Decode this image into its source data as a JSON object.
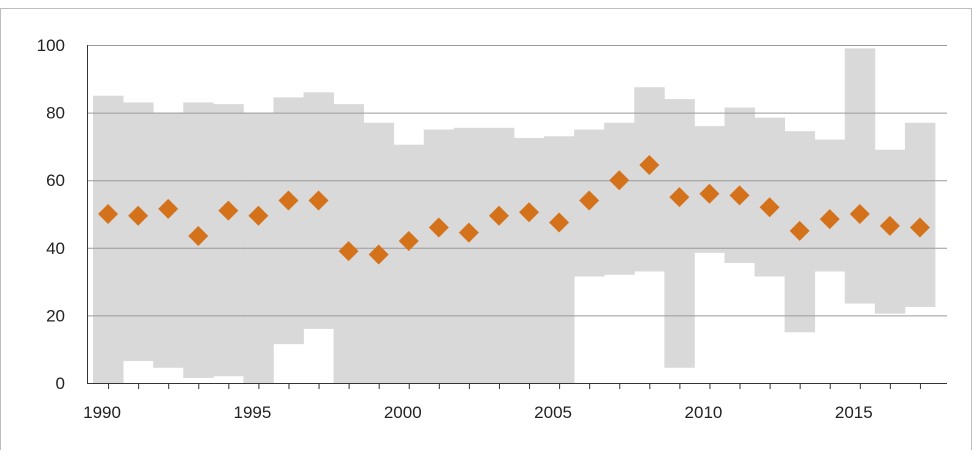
{
  "chart_data": {
    "type": "scatter",
    "title": "",
    "xlabel": "",
    "ylabel": "",
    "xlim": [
      1989.3,
      2017.9
    ],
    "ylim": [
      0,
      100
    ],
    "x_ticks": [
      "1990",
      "1995",
      "2000",
      "2005",
      "2010",
      "2015"
    ],
    "y_ticks": [
      "0",
      "20",
      "40",
      "60",
      "80",
      "100"
    ],
    "grid": true,
    "legend": "none",
    "colors": {
      "band": "#d9d9d9",
      "marker": "#d4721c",
      "grid": "#9a9a9a",
      "axis": "#333333"
    },
    "x": [
      1990,
      1991,
      1992,
      1993,
      1994,
      1995,
      1996,
      1997,
      1998,
      1999,
      2000,
      2001,
      2002,
      2003,
      2004,
      2005,
      2006,
      2007,
      2008,
      2009,
      2010,
      2011,
      2012,
      2013,
      2014,
      2015,
      2016,
      2017
    ],
    "series": [
      {
        "kind": "band-upper",
        "values": [
          85,
          83,
          80,
          83,
          82.5,
          80,
          84.5,
          86,
          82.5,
          77,
          70.5,
          75,
          75.5,
          75.5,
          72.5,
          73,
          75,
          77,
          87.5,
          84,
          76,
          81.5,
          78.5,
          74.5,
          72,
          99,
          69,
          77
        ]
      },
      {
        "kind": "band-lower",
        "values": [
          0,
          6.5,
          4.5,
          1.5,
          2,
          0,
          11.5,
          16,
          0,
          0,
          0,
          0,
          0,
          0,
          0,
          0,
          31.5,
          32,
          33,
          4.5,
          38.5,
          35.5,
          31.5,
          15,
          33,
          23.5,
          20.5,
          22.5
        ]
      },
      {
        "kind": "points",
        "values": [
          50,
          49.5,
          51.5,
          43.5,
          51,
          49.5,
          54,
          54,
          39,
          38,
          42,
          46,
          44.5,
          49.5,
          50.5,
          47.5,
          54,
          60,
          64.5,
          55,
          56,
          55.5,
          52,
          45,
          48.5,
          50,
          46.5,
          46
        ]
      }
    ]
  }
}
